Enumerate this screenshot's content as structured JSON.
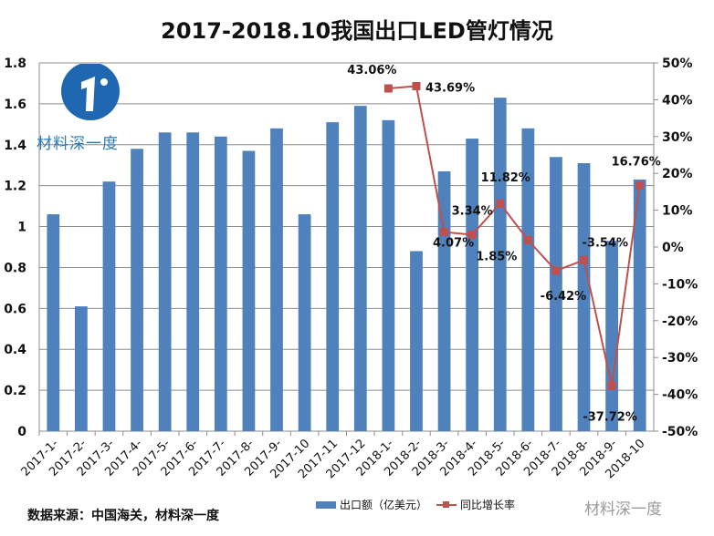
{
  "title": "2017-2018.10我国出口LED管灯情况",
  "logo_text": "材料深一度",
  "source": "数据来源：中国海关，材料深一度",
  "watermark": "材料深一度",
  "colors": {
    "bar": "#4f81bd",
    "line": "#c0504d"
  },
  "chart_data": {
    "type": "bar+line",
    "categories": [
      "2017-1-",
      "2017-2-",
      "2017-3-",
      "2017-4-",
      "2017-5-",
      "2017-6-",
      "2017-7-",
      "2017-8-",
      "2017-9-",
      "2017-10",
      "2017-11",
      "2017-12",
      "2018-1-",
      "2018-2-",
      "2018-3-",
      "2018-4-",
      "2018-5-",
      "2018-6-",
      "2018-7-",
      "2018-8-",
      "2018-9-",
      "2018-10"
    ],
    "series": [
      {
        "name": "出口额（亿美元）",
        "type": "bar",
        "axis": "left",
        "values": [
          1.06,
          0.61,
          1.22,
          1.38,
          1.46,
          1.46,
          1.44,
          1.37,
          1.48,
          1.06,
          1.51,
          1.59,
          1.52,
          0.88,
          1.27,
          1.43,
          1.63,
          1.48,
          1.34,
          1.31,
          0.93,
          1.23
        ]
      },
      {
        "name": "同比增长率",
        "type": "line",
        "axis": "right",
        "values": [
          null,
          null,
          null,
          null,
          null,
          null,
          null,
          null,
          null,
          null,
          null,
          null,
          43.06,
          43.69,
          4.07,
          3.34,
          11.82,
          1.85,
          -6.42,
          -3.54,
          -37.72,
          16.76
        ],
        "labels": [
          "",
          "",
          "",
          "",
          "",
          "",
          "",
          "",
          "",
          "",
          "",
          "",
          "43.06%",
          "43.69%",
          "4.07%",
          "3.34%",
          "11.82%",
          "1.85%",
          "-6.42%",
          "-3.54%",
          "-37.72%",
          "16.76%"
        ]
      }
    ],
    "ylim_left": [
      0,
      1.8
    ],
    "yticks_left": [
      "0",
      "0.2",
      "0.4",
      "0.6",
      "0.8",
      "1",
      "1.2",
      "1.4",
      "1.6",
      "1.8"
    ],
    "ylim_right": [
      -50,
      50
    ],
    "yticks_right": [
      "-50%",
      "-40%",
      "-30%",
      "-20%",
      "-10%",
      "0%",
      "10%",
      "20%",
      "30%",
      "40%",
      "50%"
    ],
    "grid": true,
    "legend": "bottom"
  }
}
